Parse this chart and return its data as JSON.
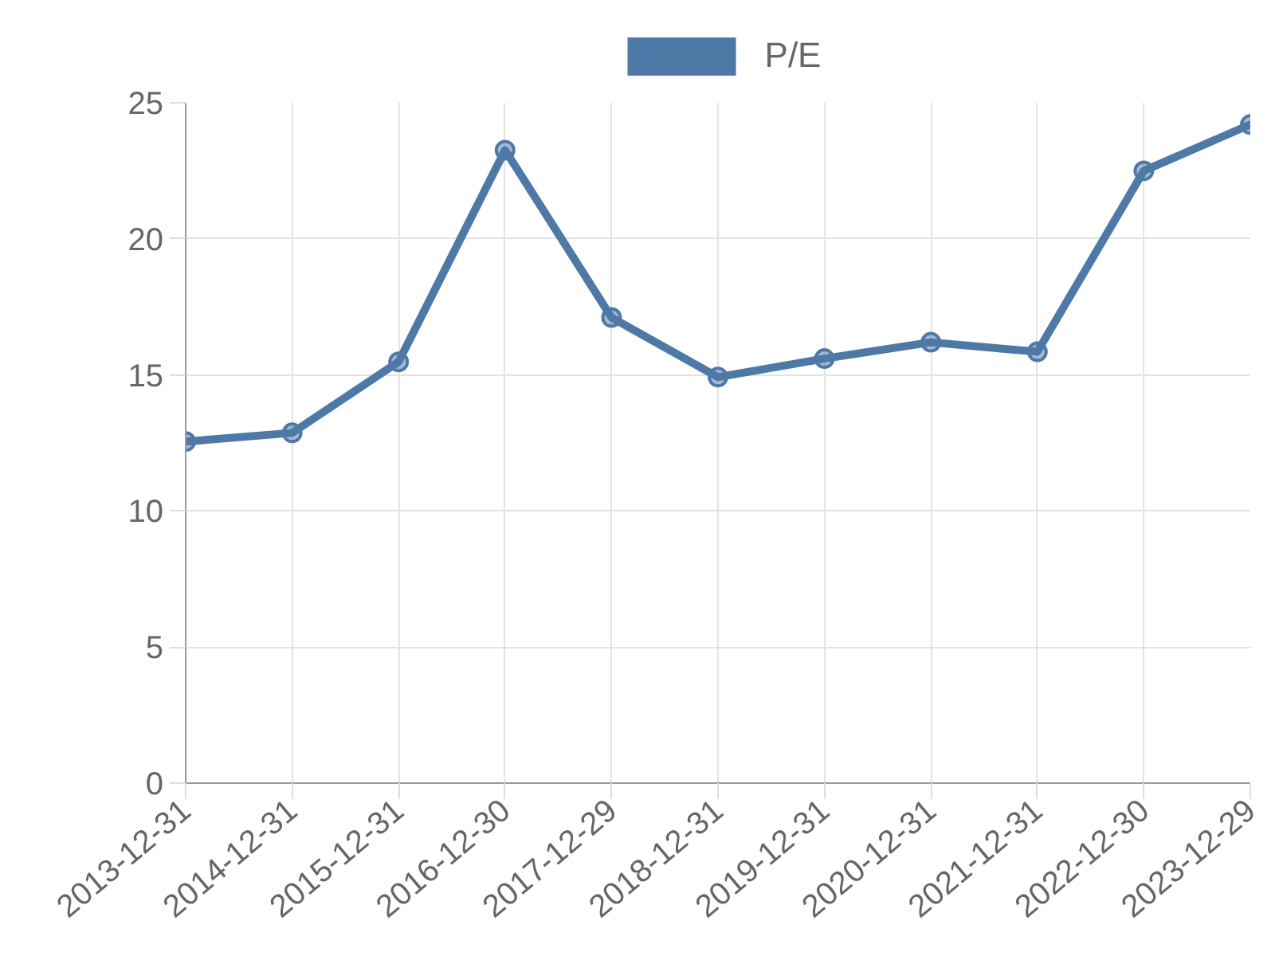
{
  "chart_data": {
    "type": "line",
    "categories": [
      "2013-12-31",
      "2014-12-31",
      "2015-12-31",
      "2016-12-30",
      "2017-12-29",
      "2018-12-31",
      "2019-12-31",
      "2020-12-31",
      "2021-12-31",
      "2022-12-30",
      "2023-12-29"
    ],
    "series": [
      {
        "name": "P/E",
        "color": "#4e79a7",
        "values": [
          12.55,
          12.87,
          15.48,
          23.26,
          17.11,
          14.92,
          15.6,
          16.2,
          15.85,
          22.5,
          24.2
        ]
      }
    ],
    "ylim": [
      0,
      25
    ],
    "yticks": [
      0,
      5,
      10,
      15,
      20,
      25
    ],
    "grid": true,
    "legend": "top",
    "marker": "circle",
    "line_style": "solid"
  }
}
